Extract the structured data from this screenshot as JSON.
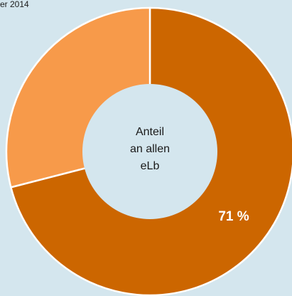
{
  "caption": "er 2014",
  "chart_data": {
    "type": "pie",
    "variant": "donut",
    "slices": [
      {
        "value": 71,
        "color": "#cc6600"
      },
      {
        "value": 29,
        "color": "#f79a4a"
      }
    ],
    "center_label": [
      "Anteil",
      "an allen",
      "eLb"
    ],
    "data_labels": [
      "71 %"
    ],
    "background": "#d4e6ee"
  }
}
